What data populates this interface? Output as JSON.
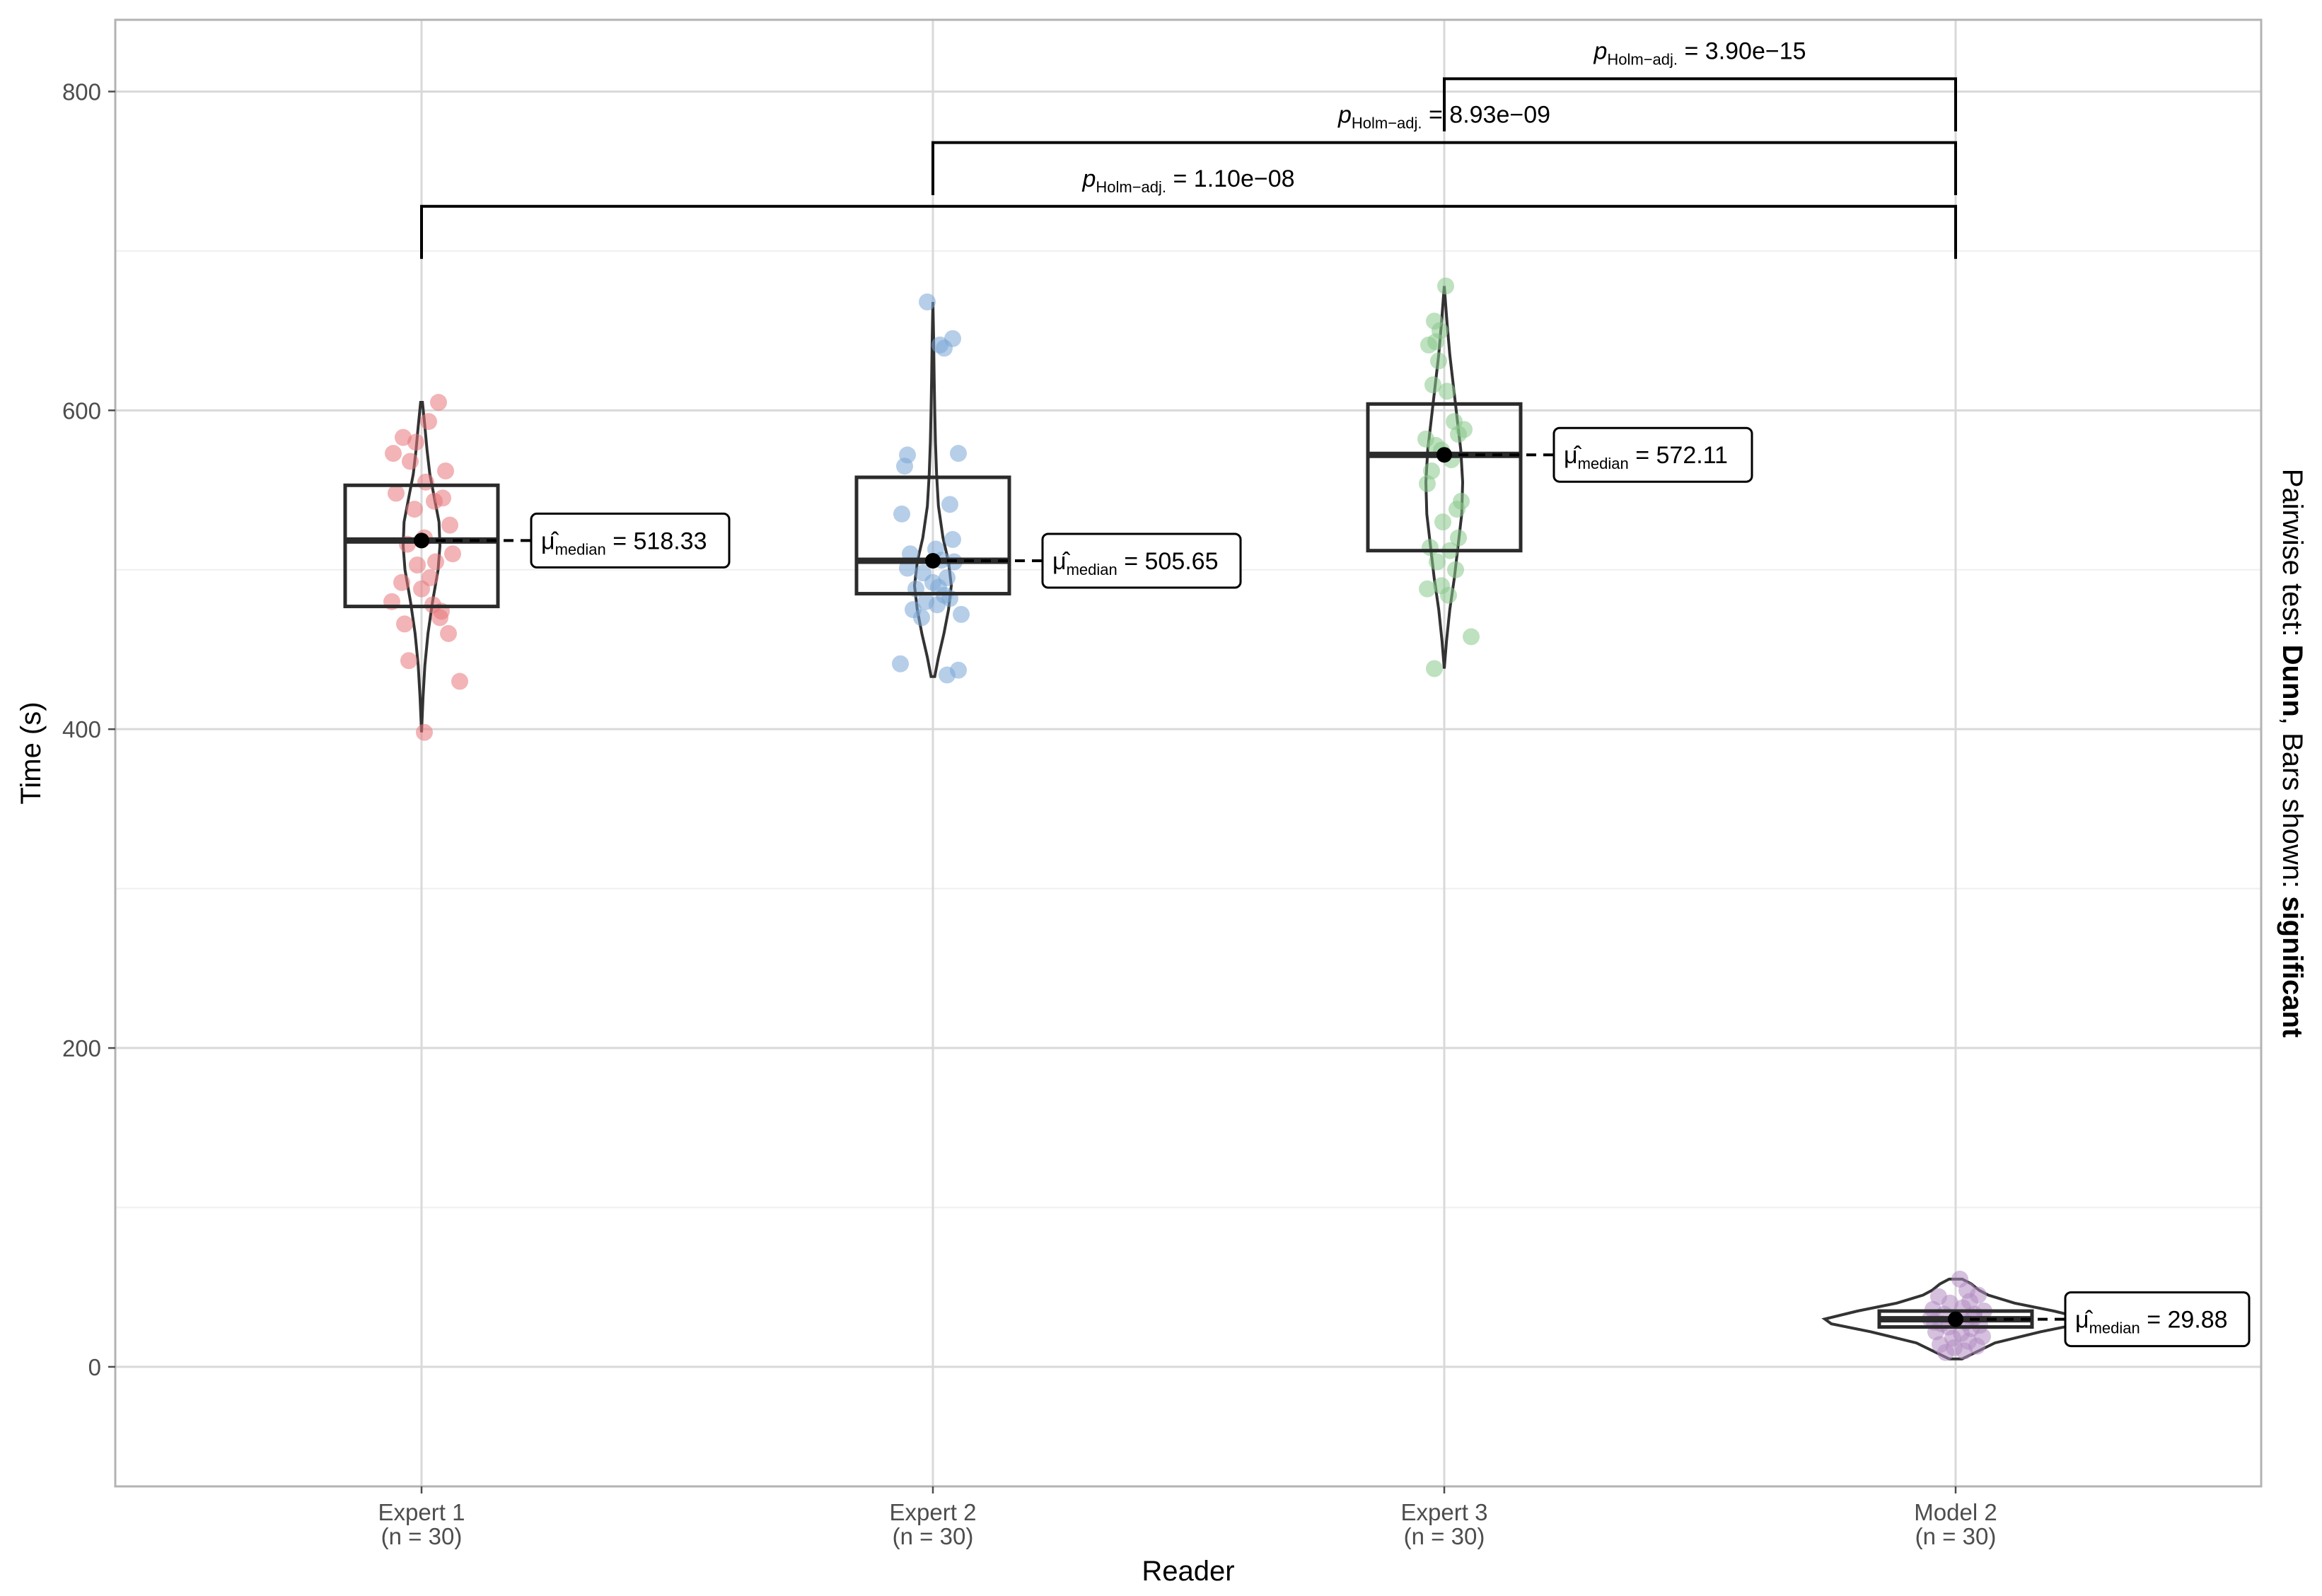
{
  "chart_data": {
    "type": "box-violin",
    "xlabel": "Reader",
    "ylabel": "Time (s)",
    "ylim": [
      -75,
      845
    ],
    "y_ticks": [
      0,
      200,
      400,
      600,
      800
    ],
    "y_tick_labels": [
      "0",
      "200",
      "400",
      "600",
      "800"
    ],
    "side_label": {
      "prefix": "Pairwise test: ",
      "test_name": "Dunn",
      "middle": ", Bars shown: ",
      "bars_shown": "significant"
    },
    "median_symbol": "μ̂",
    "median_subscript": "median",
    "groups": [
      {
        "name": "Expert 1",
        "n_label": "(n = 30)",
        "color": "#e8767a",
        "q1": 477,
        "median": 518.33,
        "q3": 553,
        "median_label": "518.33",
        "violin": [
          [
            398,
            0
          ],
          [
            420,
            0.08
          ],
          [
            440,
            0.18
          ],
          [
            460,
            0.35
          ],
          [
            480,
            0.6
          ],
          [
            500,
            0.9
          ],
          [
            515,
            1.0
          ],
          [
            530,
            0.95
          ],
          [
            545,
            0.7
          ],
          [
            560,
            0.45
          ],
          [
            575,
            0.3
          ],
          [
            590,
            0.18
          ],
          [
            605,
            0.05
          ]
        ],
        "points": [
          [
            -0.2,
            573
          ],
          [
            -0.13,
            583
          ],
          [
            -0.08,
            568
          ],
          [
            -0.04,
            580
          ],
          [
            0.05,
            593
          ],
          [
            0.12,
            605
          ],
          [
            0.17,
            562
          ],
          [
            -0.18,
            548
          ],
          [
            -0.05,
            538
          ],
          [
            0.09,
            543
          ],
          [
            0.15,
            545
          ],
          [
            0.03,
            555
          ],
          [
            0.2,
            528
          ],
          [
            -0.1,
            516
          ],
          [
            0.02,
            520
          ],
          [
            0.1,
            505
          ],
          [
            0.22,
            510
          ],
          [
            -0.03,
            503
          ],
          [
            0.06,
            495
          ],
          [
            -0.14,
            492
          ],
          [
            0.0,
            488
          ],
          [
            -0.21,
            480
          ],
          [
            0.08,
            478
          ],
          [
            0.14,
            474
          ],
          [
            -0.12,
            466
          ],
          [
            0.13,
            470
          ],
          [
            0.19,
            460
          ],
          [
            -0.09,
            443
          ],
          [
            0.27,
            430
          ],
          [
            0.02,
            398
          ]
        ]
      },
      {
        "name": "Expert 2",
        "n_label": "(n = 30)",
        "color": "#7aa6d6",
        "q1": 485,
        "median": 505.65,
        "q3": 558,
        "median_label": "505.65",
        "violin": [
          [
            433,
            0.1
          ],
          [
            445,
            0.3
          ],
          [
            460,
            0.6
          ],
          [
            475,
            0.85
          ],
          [
            490,
            1.0
          ],
          [
            505,
            0.85
          ],
          [
            520,
            0.55
          ],
          [
            540,
            0.3
          ],
          [
            560,
            0.2
          ],
          [
            580,
            0.14
          ],
          [
            600,
            0.1
          ],
          [
            620,
            0.07
          ],
          [
            645,
            0.04
          ],
          [
            668,
            0
          ]
        ],
        "points": [
          [
            -0.04,
            668
          ],
          [
            0.05,
            641
          ],
          [
            0.14,
            645
          ],
          [
            0.08,
            639
          ],
          [
            -0.18,
            572
          ],
          [
            0.18,
            573
          ],
          [
            -0.2,
            565
          ],
          [
            -0.22,
            535
          ],
          [
            0.12,
            541
          ],
          [
            -0.16,
            510
          ],
          [
            -0.18,
            501
          ],
          [
            0.14,
            519
          ],
          [
            0.02,
            513
          ],
          [
            0.06,
            506
          ],
          [
            -0.07,
            498
          ],
          [
            0.1,
            495
          ],
          [
            0.0,
            492
          ],
          [
            0.04,
            489
          ],
          [
            -0.12,
            488
          ],
          [
            0.08,
            484
          ],
          [
            -0.05,
            480
          ],
          [
            0.12,
            482
          ],
          [
            0.2,
            472
          ],
          [
            -0.08,
            470
          ],
          [
            0.03,
            478
          ],
          [
            -0.23,
            441
          ],
          [
            0.18,
            437
          ],
          [
            0.1,
            434
          ],
          [
            -0.14,
            475
          ],
          [
            0.15,
            505
          ]
        ]
      },
      {
        "name": "Expert 3",
        "n_label": "(n = 30)",
        "color": "#88c98a",
        "q1": 512,
        "median": 572.11,
        "q3": 604,
        "median_label": "572.11",
        "violin": [
          [
            438,
            0
          ],
          [
            455,
            0.12
          ],
          [
            475,
            0.3
          ],
          [
            495,
            0.55
          ],
          [
            515,
            0.75
          ],
          [
            535,
            0.95
          ],
          [
            555,
            1.0
          ],
          [
            575,
            0.9
          ],
          [
            595,
            0.7
          ],
          [
            615,
            0.5
          ],
          [
            635,
            0.3
          ],
          [
            655,
            0.15
          ],
          [
            678,
            0
          ]
        ],
        "points": [
          [
            0.01,
            678
          ],
          [
            -0.07,
            656
          ],
          [
            -0.03,
            650
          ],
          [
            -0.06,
            643
          ],
          [
            -0.11,
            641
          ],
          [
            -0.04,
            631
          ],
          [
            -0.08,
            616
          ],
          [
            0.02,
            612
          ],
          [
            0.07,
            593
          ],
          [
            -0.13,
            582
          ],
          [
            -0.06,
            578
          ],
          [
            0.1,
            585
          ],
          [
            0.14,
            588
          ],
          [
            -0.02,
            575
          ],
          [
            0.05,
            569
          ],
          [
            -0.09,
            562
          ],
          [
            -0.12,
            554
          ],
          [
            0.12,
            543
          ],
          [
            0.09,
            538
          ],
          [
            -0.01,
            530
          ],
          [
            -0.1,
            514
          ],
          [
            0.04,
            512
          ],
          [
            -0.05,
            505
          ],
          [
            0.08,
            500
          ],
          [
            -0.02,
            490
          ],
          [
            -0.12,
            488
          ],
          [
            0.03,
            484
          ],
          [
            0.19,
            458
          ],
          [
            -0.07,
            438
          ],
          [
            0.1,
            520
          ]
        ]
      },
      {
        "name": "Model 2",
        "n_label": "(n = 30)",
        "color": "#b28dc2",
        "q1": 25,
        "median": 29.88,
        "q3": 35,
        "median_label": "29.88",
        "violin": [
          [
            5,
            0.05
          ],
          [
            15,
            0.3
          ],
          [
            22,
            0.65
          ],
          [
            27,
            0.95
          ],
          [
            30,
            1.0
          ],
          [
            35,
            0.75
          ],
          [
            40,
            0.45
          ],
          [
            45,
            0.25
          ],
          [
            48,
            0.18
          ],
          [
            52,
            0.12
          ],
          [
            55,
            0.05
          ]
        ],
        "points": [
          [
            0.03,
            55
          ],
          [
            0.08,
            48
          ],
          [
            -0.12,
            44
          ],
          [
            0.16,
            45
          ],
          [
            -0.04,
            40
          ],
          [
            0.1,
            41
          ],
          [
            -0.16,
            36
          ],
          [
            0.05,
            37
          ],
          [
            0.2,
            35
          ],
          [
            -0.08,
            33
          ],
          [
            0.13,
            31
          ],
          [
            -0.18,
            30
          ],
          [
            0.0,
            29
          ],
          [
            0.07,
            28
          ],
          [
            -0.1,
            27
          ],
          [
            0.17,
            26
          ],
          [
            -0.05,
            25
          ],
          [
            0.11,
            24
          ],
          [
            -0.14,
            22
          ],
          [
            0.04,
            21
          ],
          [
            0.19,
            19
          ],
          [
            -0.02,
            18
          ],
          [
            0.09,
            16
          ],
          [
            -0.11,
            14
          ],
          [
            0.15,
            13
          ],
          [
            -0.01,
            12
          ],
          [
            0.06,
            10
          ],
          [
            -0.07,
            9
          ],
          [
            0.13,
            33
          ],
          [
            -0.15,
            28
          ]
        ]
      }
    ],
    "comparisons": [
      {
        "from": 0,
        "to": 3,
        "y": 728,
        "tip_y": 695,
        "label_prefix": "p",
        "label_sub": "Holm−adj.",
        "label_value": " = 1.10e−08",
        "label_pos": 0.5
      },
      {
        "from": 1,
        "to": 3,
        "y": 768,
        "tip_y": 735,
        "label_prefix": "p",
        "label_sub": "Holm−adj.",
        "label_value": " = 8.93e−09",
        "label_pos": 0.5
      },
      {
        "from": 2,
        "to": 3,
        "y": 808,
        "tip_y": 775,
        "label_prefix": "p",
        "label_sub": "Holm−adj.",
        "label_value": " = 3.90e−15",
        "label_pos": 0.5
      }
    ]
  }
}
